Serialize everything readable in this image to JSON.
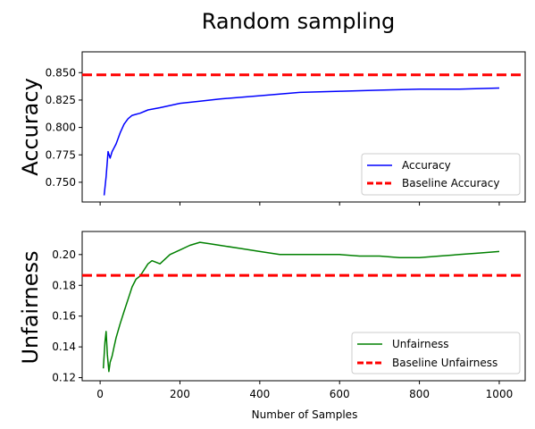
{
  "chart_data": {
    "type": "line",
    "title": "Random sampling",
    "xlabel": "Number of Samples",
    "x_ticks": [
      0,
      200,
      400,
      600,
      800,
      1000
    ],
    "xlim": [
      -45,
      1065
    ],
    "panels": [
      {
        "ylabel": "Accuracy",
        "ylim": [
          0.732,
          0.869
        ],
        "y_ticks": [
          0.75,
          0.775,
          0.8,
          0.825,
          0.85
        ],
        "y_tick_labels": [
          "0.750",
          "0.775",
          "0.800",
          "0.825",
          "0.850"
        ],
        "x_tick_labels_shown": false,
        "series": [
          {
            "name": "Accuracy",
            "color": "#0000ff",
            "x": [
              10,
              15,
              20,
              25,
              30,
              40,
              50,
              60,
              70,
              80,
              90,
              100,
              120,
              150,
              200,
              250,
              300,
              400,
              500,
              600,
              700,
              800,
              900,
              1000
            ],
            "y": [
              0.738,
              0.755,
              0.778,
              0.772,
              0.778,
              0.785,
              0.795,
              0.803,
              0.808,
              0.811,
              0.812,
              0.813,
              0.816,
              0.818,
              0.822,
              0.824,
              0.826,
              0.829,
              0.832,
              0.833,
              0.834,
              0.835,
              0.835,
              0.836
            ]
          }
        ],
        "baseline": {
          "name": "Baseline Accuracy",
          "value": 0.848,
          "color": "#ff0000"
        },
        "legend": {
          "placement": "lower right",
          "entries": [
            "Accuracy",
            "Baseline Accuracy"
          ]
        }
      },
      {
        "ylabel": "Unfairness",
        "ylim": [
          0.118,
          0.215
        ],
        "y_ticks": [
          0.12,
          0.14,
          0.16,
          0.18,
          0.2
        ],
        "y_tick_labels": [
          "0.12",
          "0.14",
          "0.16",
          "0.18",
          "0.20"
        ],
        "x_tick_labels_shown": true,
        "x_tick_labels": [
          "0",
          "200",
          "400",
          "600",
          "800",
          "1000"
        ],
        "series": [
          {
            "name": "Unfairness",
            "color": "#008000",
            "x": [
              8,
              12,
              15,
              18,
              22,
              25,
              30,
              35,
              40,
              50,
              60,
              70,
              80,
              90,
              100,
              110,
              120,
              130,
              140,
              150,
              175,
              200,
              225,
              250,
              275,
              300,
              350,
              400,
              450,
              500,
              550,
              600,
              650,
              700,
              750,
              800,
              850,
              900,
              950,
              1000
            ],
            "y": [
              0.126,
              0.143,
              0.15,
              0.135,
              0.124,
              0.13,
              0.134,
              0.14,
              0.146,
              0.155,
              0.163,
              0.171,
              0.179,
              0.184,
              0.186,
              0.19,
              0.194,
              0.196,
              0.195,
              0.194,
              0.2,
              0.203,
              0.206,
              0.208,
              0.207,
              0.206,
              0.204,
              0.202,
              0.2,
              0.2,
              0.2,
              0.2,
              0.199,
              0.199,
              0.198,
              0.198,
              0.199,
              0.2,
              0.201,
              0.202
            ]
          }
        ],
        "baseline": {
          "name": "Baseline Unfairness",
          "value": 0.1865,
          "color": "#ff0000"
        },
        "legend": {
          "placement": "lower right",
          "entries": [
            "Unfairness",
            "Baseline Unfairness"
          ]
        }
      }
    ],
    "grid": false
  }
}
